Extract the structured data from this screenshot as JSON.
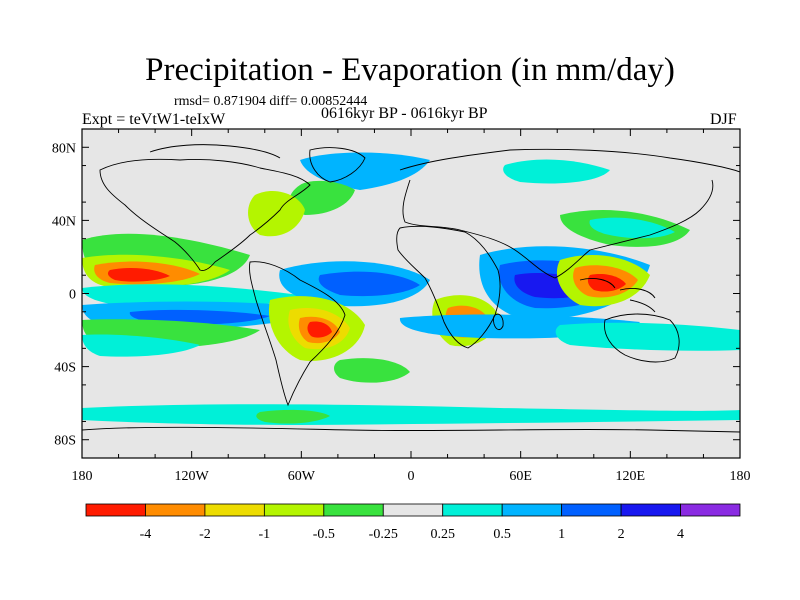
{
  "header": {
    "title": "Precipitation - Evaporation (in mm/day)",
    "stats": "rmsd= 0.871904 diff= 0.00852444",
    "period": "0616kyr BP - 0616kyr BP",
    "experiment": "Expt = teVtW1-teIxW",
    "season": "DJF"
  },
  "map": {
    "projection": "cylindrical-equidistant",
    "lat_ticks": [
      "80N",
      "40N",
      "0",
      "40S",
      "80S"
    ],
    "lon_ticks": [
      "180",
      "120W",
      "60W",
      "0",
      "60E",
      "120E",
      "180"
    ],
    "background_color": "#e6e6e6",
    "coastline_color": "#000000"
  },
  "legend": {
    "labels": [
      "-4",
      "-2",
      "-1",
      "-0.5",
      "-0.25",
      "0.25",
      "0.5",
      "1",
      "2",
      "4"
    ],
    "colors": [
      "#ff1b00",
      "#ff8c00",
      "#eddc00",
      "#b4f500",
      "#39e23e",
      "#e6e6e6",
      "#00f0d8",
      "#00b4ff",
      "#0060ff",
      "#1818f0",
      "#8a2be2"
    ]
  }
}
